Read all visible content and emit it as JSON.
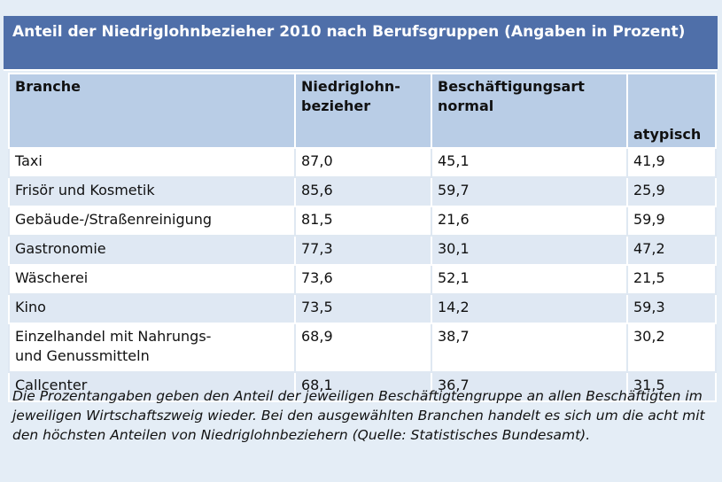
{
  "title": "Anteil der Niedriglohnbezieher 2010 nach Berufsgruppen (Angaben in Prozent)",
  "headers": {
    "branche": "Branche",
    "niedriglohn_line1": "Niedriglohn-",
    "niedriglohn_line2": "bezieher",
    "beschaeftigungsart": "Beschäftigungsart",
    "normal": "normal",
    "atypisch": "atypisch"
  },
  "rows": [
    {
      "branche": "Taxi",
      "niedriglohn": "87,0",
      "normal": "45,1",
      "atypisch": "41,9"
    },
    {
      "branche": "Frisör und Kosmetik",
      "niedriglohn": "85,6",
      "normal": "59,7",
      "atypisch": "25,9"
    },
    {
      "branche": "Gebäude-/Straßenreinigung",
      "niedriglohn": "81,5",
      "normal": "21,6",
      "atypisch": "59,9"
    },
    {
      "branche": "Gastronomie",
      "niedriglohn": "77,3",
      "normal": "30,1",
      "atypisch": "47,2"
    },
    {
      "branche": "Wäscherei",
      "niedriglohn": "73,6",
      "normal": "52,1",
      "atypisch": "21,5"
    },
    {
      "branche": "Kino",
      "niedriglohn": "73,5",
      "normal": "14,2",
      "atypisch": "59,3"
    },
    {
      "branche_line1": "Einzelhandel mit Nahrungs-",
      "branche_line2": "und Genussmitteln",
      "niedriglohn": "68,9",
      "normal": "38,7",
      "atypisch": "30,2"
    },
    {
      "branche": "Callcenter",
      "niedriglohn": "68,1",
      "normal": "36,7",
      "atypisch": "31,5"
    }
  ],
  "note": "Die Prozentangaben geben den Anteil der jeweiligen Beschäftigtengruppe an allen Beschäftigten im jeweiligen Wirtschaftszweig wieder. Bei den ausgewählten Branchen handelt es sich um die acht mit den höchsten Anteilen von Niedriglohnbeziehern (Quelle: Statistisches Bundesamt)."
}
